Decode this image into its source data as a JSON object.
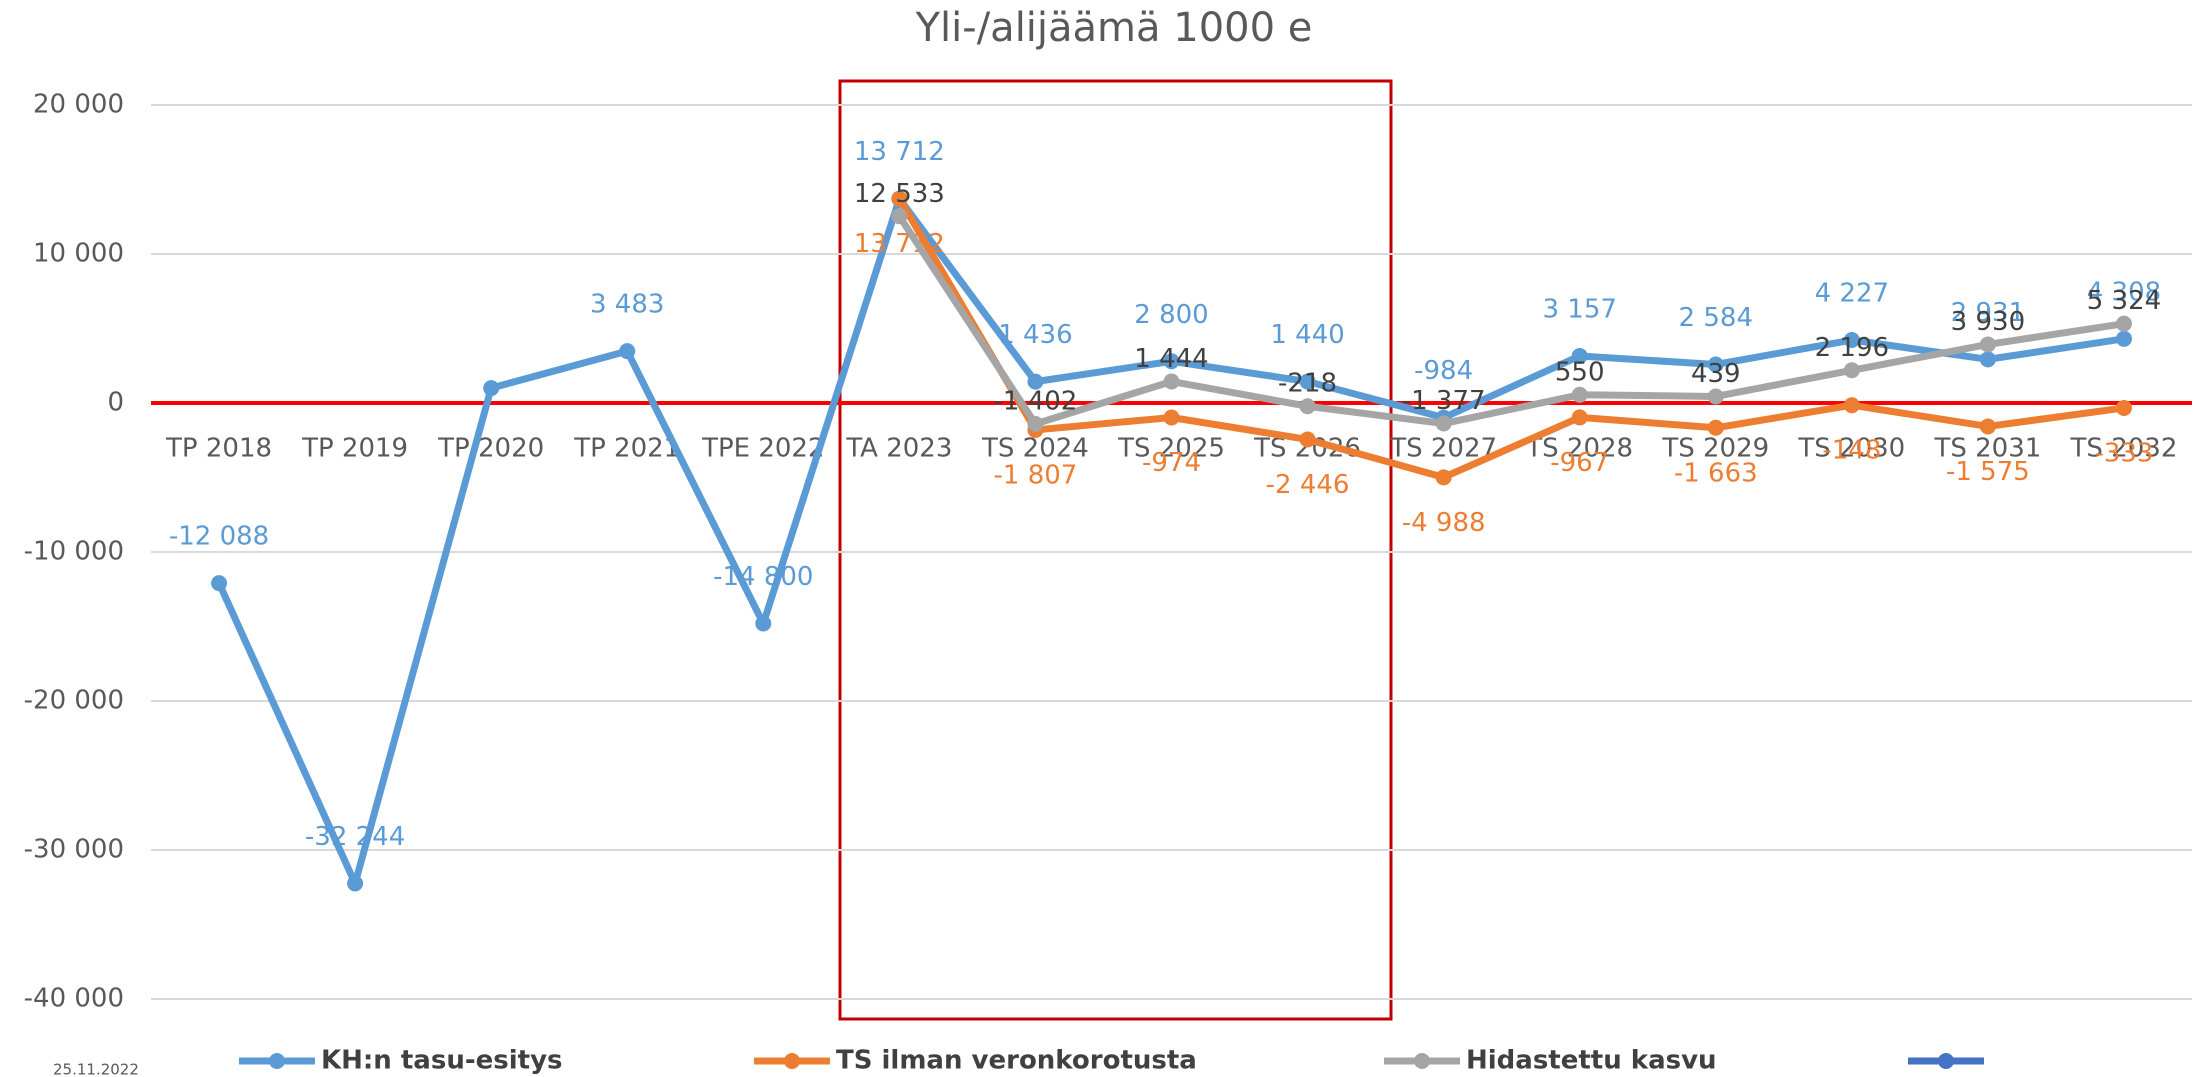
{
  "chart_data": {
    "type": "line",
    "title": "Yli-/alijäämä 1000 e",
    "footer": "25.11.2022",
    "categories": [
      "TP 2018",
      "TP 2019",
      "TP 2020",
      "TP 2021",
      "TPE 2022",
      "TA 2023",
      "TS 2024",
      "TS 2025",
      "TS 2026",
      "TS 2027",
      "TS 2028",
      "TS 2029",
      "TS 2030",
      "TS 2031",
      "TS 2032"
    ],
    "ylim": [
      -40000,
      20000
    ],
    "yticks": [
      {
        "value": -40000,
        "label": "-40 000"
      },
      {
        "value": -30000,
        "label": "-30 000"
      },
      {
        "value": -20000,
        "label": "-20 000"
      },
      {
        "value": -10000,
        "label": "-10 000"
      },
      0,
      {
        "value": 10000,
        "label": "10 000"
      },
      {
        "value": 20000,
        "label": "20 000"
      }
    ],
    "grid": true,
    "zero_line_color": "#ff0000",
    "legend": "bottom",
    "series": [
      {
        "name": "KH:n tasu-esitys",
        "color": "#5b9bd5",
        "values": [
          -12088,
          -32244,
          1000,
          3483,
          -14800,
          13712,
          1436,
          2800,
          1440,
          -984,
          3157,
          2584,
          4227,
          2931,
          4308
        ],
        "value_labels": [
          "-12 088",
          "-32 244",
          null,
          "3 483",
          "-14 800",
          "13 712",
          "1 436",
          "2 800",
          "1 440",
          "-984",
          "3 157",
          "2 584",
          "4 227",
          "2 931",
          "4 308"
        ]
      },
      {
        "name": "TS ilman veronkorotusta",
        "color": "#ed7d31",
        "values": [
          null,
          null,
          null,
          null,
          null,
          13712,
          -1807,
          -974,
          -2446,
          -4988,
          -967,
          -1663,
          -148,
          -1575,
          -333
        ],
        "value_labels": [
          null,
          null,
          null,
          null,
          null,
          "13 712",
          "-1 807",
          "-974",
          "-2 446",
          "-4 988",
          "-967",
          "-1 663",
          "-148",
          "-1 575",
          "-333"
        ]
      },
      {
        "name": "Hidastettu kasvu",
        "color": "#a5a5a5",
        "values": [
          null,
          null,
          null,
          null,
          null,
          12533,
          -1402,
          1444,
          -218,
          -1377,
          550,
          439,
          2196,
          3930,
          5324
        ],
        "value_labels": [
          null,
          null,
          null,
          null,
          null,
          "12 533",
          "-1 402",
          "1 444",
          "-218",
          "-1 377",
          "550",
          "439",
          "2 196",
          "3 930",
          "5 324"
        ]
      },
      {
        "color": "#4472c4",
        "values": [
          null,
          null,
          null,
          null,
          null,
          null,
          null,
          null,
          null,
          null,
          null,
          null,
          null,
          null,
          null
        ]
      }
    ]
  }
}
